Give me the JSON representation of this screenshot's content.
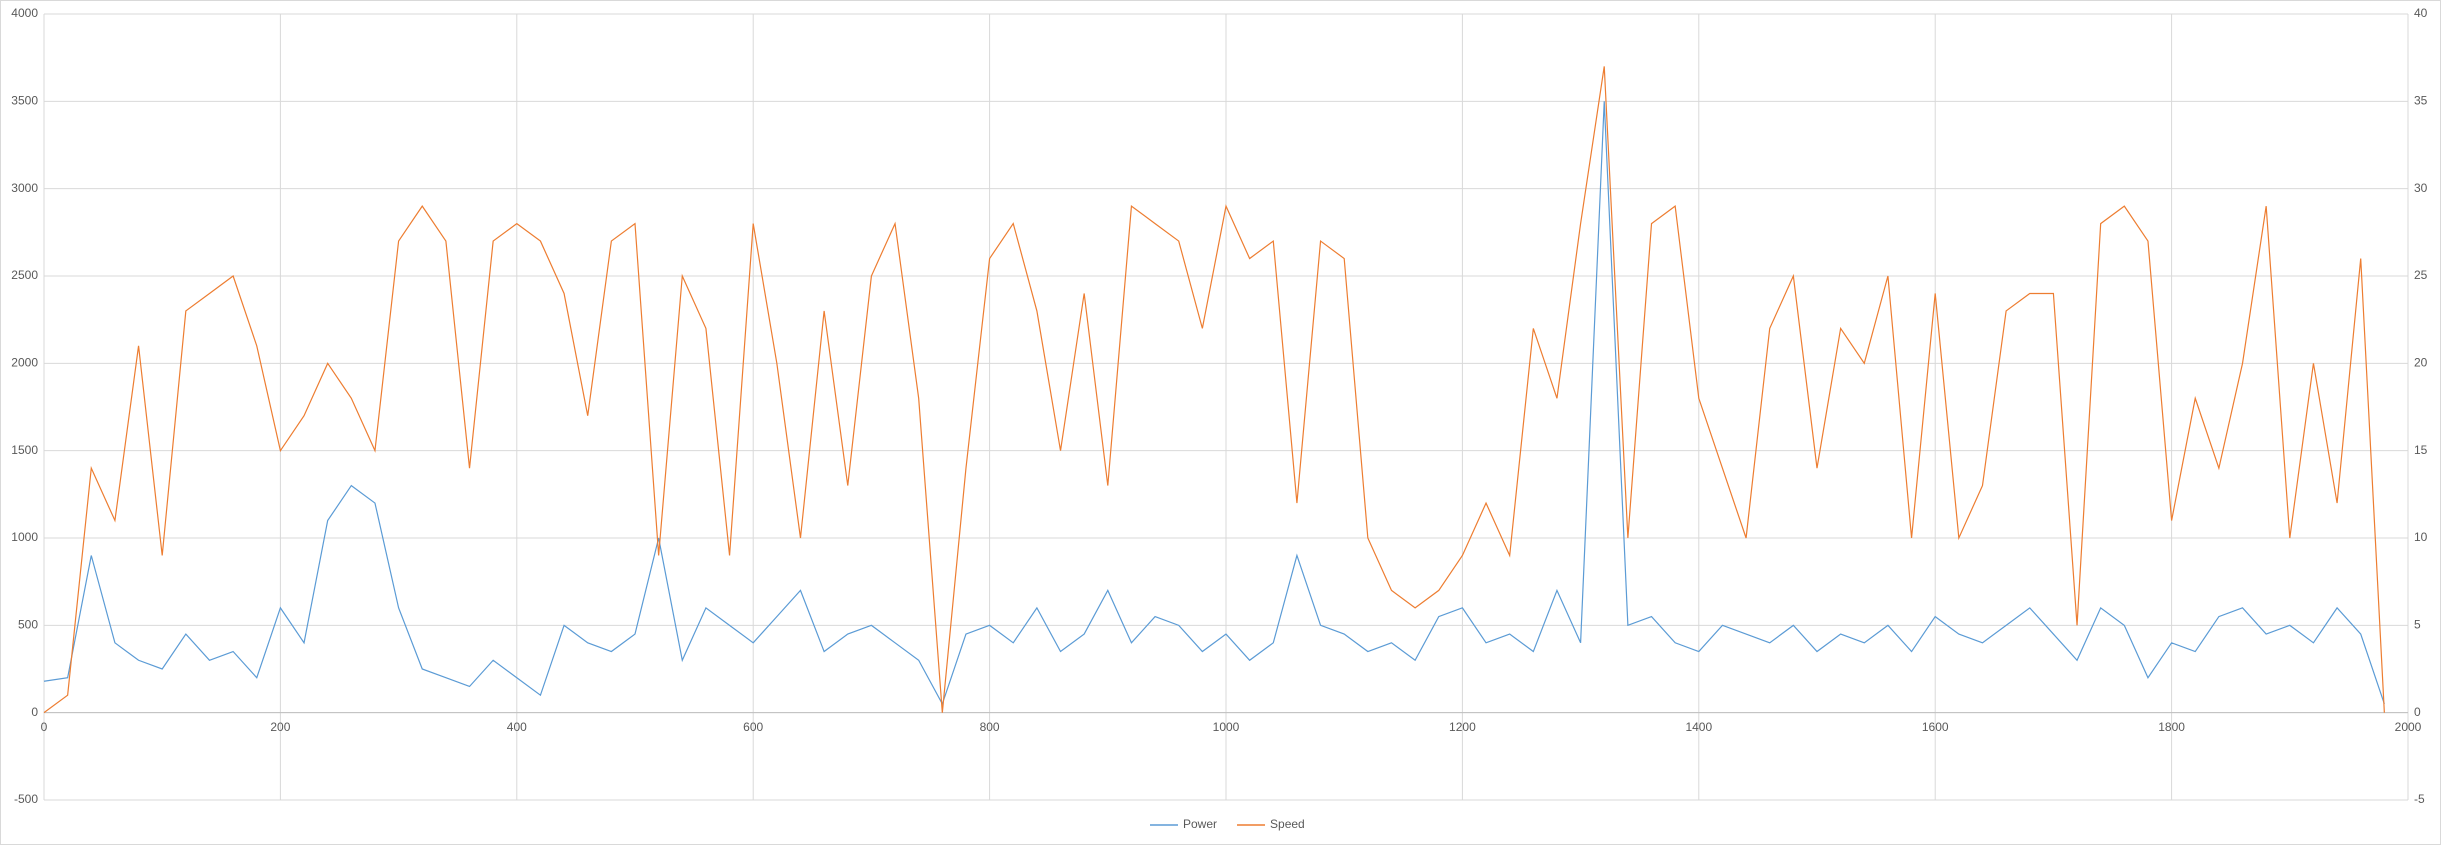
{
  "chart_data": {
    "type": "line",
    "grid": true,
    "legend": "bottom",
    "x": [
      0,
      20,
      40,
      60,
      80,
      100,
      120,
      140,
      160,
      180,
      200,
      220,
      240,
      260,
      280,
      300,
      320,
      340,
      360,
      380,
      400,
      420,
      440,
      460,
      480,
      500,
      520,
      540,
      560,
      580,
      600,
      620,
      640,
      660,
      680,
      700,
      720,
      740,
      760,
      780,
      800,
      820,
      840,
      860,
      880,
      900,
      920,
      940,
      960,
      980,
      1000,
      1020,
      1040,
      1060,
      1080,
      1100,
      1120,
      1140,
      1160,
      1180,
      1200,
      1220,
      1240,
      1260,
      1280,
      1300,
      1320,
      1340,
      1360,
      1380,
      1400,
      1420,
      1440,
      1460,
      1480,
      1500,
      1520,
      1540,
      1560,
      1580,
      1600,
      1620,
      1640,
      1660,
      1680,
      1700,
      1720,
      1740,
      1760,
      1780,
      1800,
      1820,
      1840,
      1860,
      1880,
      1900,
      1920,
      1940,
      1960,
      1980
    ],
    "series": [
      {
        "name": "Power",
        "color": "#5b9bd5",
        "values": [
          180,
          200,
          900,
          400,
          300,
          250,
          450,
          300,
          350,
          200,
          600,
          400,
          1100,
          1300,
          1200,
          600,
          250,
          200,
          150,
          300,
          200,
          100,
          500,
          400,
          350,
          450,
          1000,
          300,
          600,
          500,
          400,
          550,
          700,
          350,
          450,
          500,
          400,
          300,
          50,
          450,
          500,
          400,
          600,
          350,
          450,
          700,
          400,
          550,
          500,
          350,
          450,
          300,
          400,
          900,
          500,
          450,
          350,
          400,
          300,
          550,
          600,
          400,
          450,
          350,
          700,
          400,
          3500,
          500,
          550,
          400,
          350,
          500,
          450,
          400,
          500,
          350,
          450,
          400,
          500,
          350,
          550,
          450,
          400,
          500,
          600,
          450,
          300,
          600,
          500,
          200,
          400,
          350,
          550,
          600,
          450,
          500,
          400,
          600,
          450,
          50
        ]
      },
      {
        "name": "Speed",
        "color": "#ed7d31",
        "axis": "y2",
        "values": [
          0,
          1,
          14,
          11,
          21,
          9,
          23,
          24,
          25,
          21,
          15,
          17,
          20,
          18,
          15,
          27,
          29,
          27,
          14,
          27,
          28,
          27,
          24,
          17,
          27,
          28,
          9,
          25,
          22,
          9,
          28,
          20,
          10,
          23,
          13,
          25,
          28,
          18,
          0,
          14,
          26,
          28,
          23,
          15,
          24,
          13,
          29,
          28,
          27,
          22,
          29,
          26,
          27,
          12,
          27,
          26,
          10,
          7,
          6,
          7,
          9,
          12,
          9,
          22,
          18,
          28,
          37,
          10,
          28,
          29,
          18,
          14,
          10,
          22,
          25,
          14,
          22,
          20,
          25,
          10,
          24,
          10,
          13,
          23,
          24,
          24,
          5,
          28,
          29,
          27,
          11,
          18,
          14,
          20,
          29,
          10,
          20,
          12,
          26,
          0
        ]
      }
    ],
    "xlim": [
      0,
      2000
    ],
    "xticks": [
      0,
      200,
      400,
      600,
      800,
      1000,
      1200,
      1400,
      1600,
      1800,
      2000
    ],
    "ylim": [
      -500,
      4000
    ],
    "yticks": [
      -500,
      0,
      500,
      1000,
      1500,
      2000,
      2500,
      3000,
      3500,
      4000
    ],
    "y2lim": [
      -5,
      40
    ],
    "y2ticks": [
      -5,
      0,
      5,
      10,
      15,
      20,
      25,
      30,
      35,
      40
    ]
  }
}
